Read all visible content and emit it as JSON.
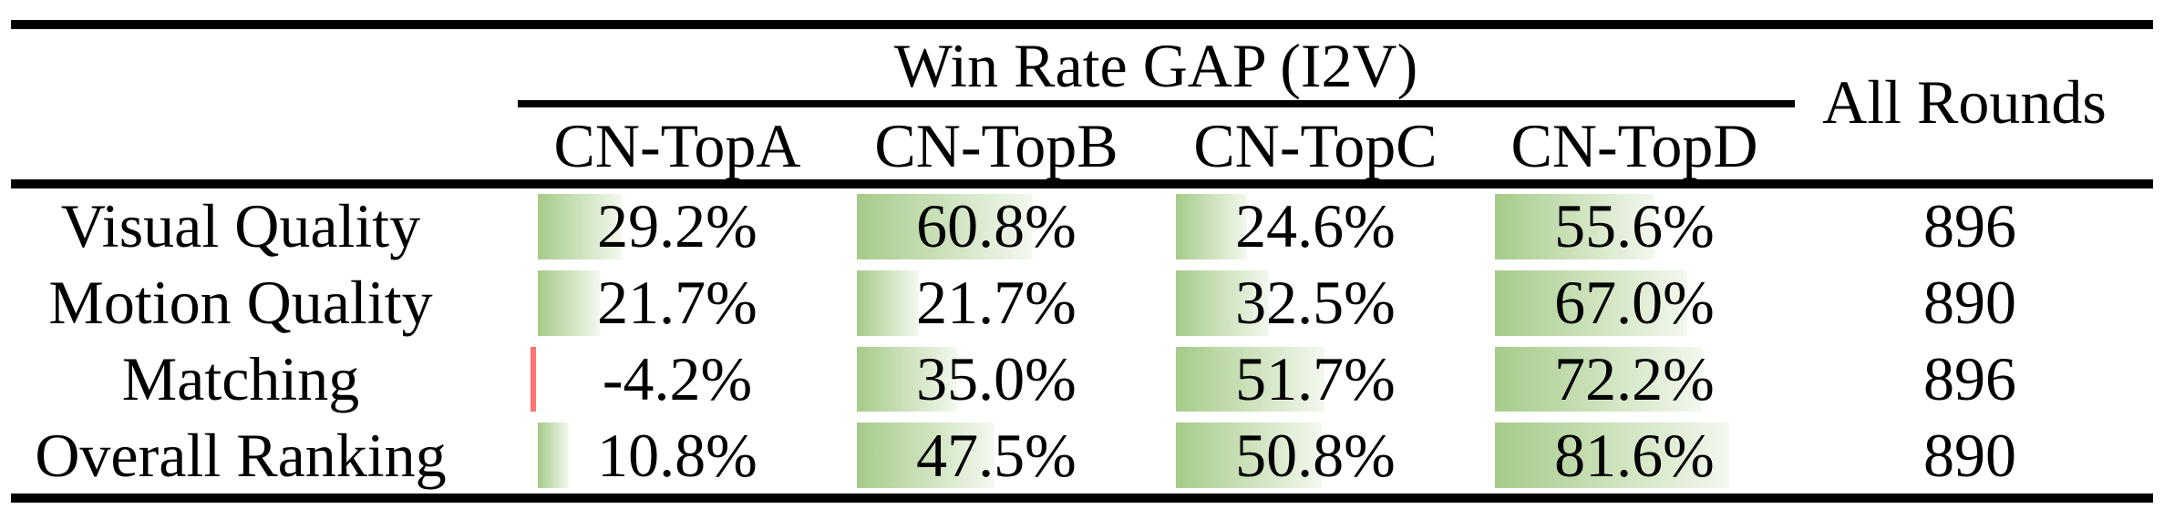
{
  "table": {
    "title": "Win Rate GAP (I2V)",
    "all_rounds_header": "All Rounds",
    "column_headers": [
      "CN-TopA",
      "CN-TopB",
      "CN-TopC",
      "CN-TopD"
    ],
    "rows": [
      {
        "label": "Visual Quality",
        "cells": [
          {
            "display": "29.2%",
            "value": 29.2
          },
          {
            "display": "60.8%",
            "value": 60.8
          },
          {
            "display": "24.6%",
            "value": 24.6
          },
          {
            "display": "55.6%",
            "value": 55.6
          }
        ],
        "all_rounds": "896"
      },
      {
        "label": "Motion Quality",
        "cells": [
          {
            "display": "21.7%",
            "value": 21.7
          },
          {
            "display": "21.7%",
            "value": 21.7
          },
          {
            "display": "32.5%",
            "value": 32.5
          },
          {
            "display": "67.0%",
            "value": 67.0
          }
        ],
        "all_rounds": "890"
      },
      {
        "label": "Matching",
        "cells": [
          {
            "display": "-4.2%",
            "value": -4.2
          },
          {
            "display": "35.0%",
            "value": 35.0
          },
          {
            "display": "51.7%",
            "value": 51.7
          },
          {
            "display": "72.2%",
            "value": 72.2
          }
        ],
        "all_rounds": "896"
      },
      {
        "label": "Overall Ranking",
        "cells": [
          {
            "display": "10.8%",
            "value": 10.8
          },
          {
            "display": "47.5%",
            "value": 47.5
          },
          {
            "display": "50.8%",
            "value": 50.8
          },
          {
            "display": "81.6%",
            "value": 81.6
          }
        ],
        "all_rounds": "890"
      }
    ]
  },
  "colors": {
    "bar_positive_start": "#a6cb89",
    "bar_positive_end": "#f3f8ee",
    "bar_negative": "#f97373",
    "rule": "#000000",
    "text": "#000000"
  },
  "chart_data": {
    "type": "table",
    "title": "Win Rate GAP (I2V)",
    "columns": [
      "CN-TopA",
      "CN-TopB",
      "CN-TopC",
      "CN-TopD",
      "All Rounds"
    ],
    "row_labels": [
      "Visual Quality",
      "Motion Quality",
      "Matching",
      "Overall Ranking"
    ],
    "series": [
      {
        "name": "CN-TopA",
        "values": [
          29.2,
          21.7,
          -4.2,
          10.8
        ]
      },
      {
        "name": "CN-TopB",
        "values": [
          60.8,
          21.7,
          35.0,
          47.5
        ]
      },
      {
        "name": "CN-TopC",
        "values": [
          24.6,
          32.5,
          51.7,
          50.8
        ]
      },
      {
        "name": "CN-TopD",
        "values": [
          55.6,
          67.0,
          72.2,
          81.6
        ]
      }
    ],
    "all_rounds": [
      896,
      890,
      896,
      890
    ],
    "units": "percent",
    "notes": "in-cell green data bars proportional to win-rate gap; negative value shown as thin red bar"
  }
}
